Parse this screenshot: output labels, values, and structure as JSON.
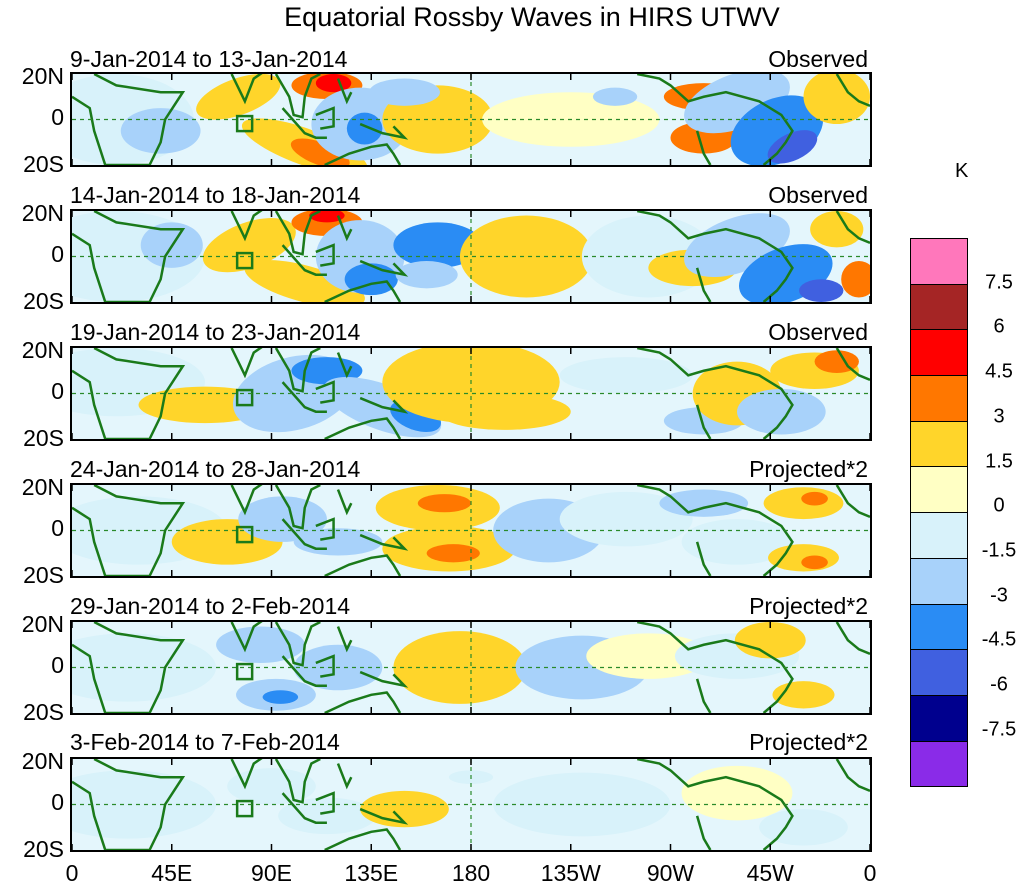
{
  "title": "Equatorial Rossby Waves in HIRS UTWV",
  "unit_label": "K",
  "latitude_labels": [
    "20N",
    "0",
    "20S"
  ],
  "longitude_labels": [
    "0",
    "45E",
    "90E",
    "135E",
    "180",
    "135W",
    "90W",
    "45W",
    "0"
  ],
  "panels": [
    {
      "date_range": "9-Jan-2014 to 13-Jan-2014",
      "kind": "Observed"
    },
    {
      "date_range": "14-Jan-2014 to 18-Jan-2014",
      "kind": "Observed"
    },
    {
      "date_range": "19-Jan-2014 to 23-Jan-2014",
      "kind": "Observed"
    },
    {
      "date_range": "24-Jan-2014 to 28-Jan-2014",
      "kind": "Projected*2"
    },
    {
      "date_range": "29-Jan-2014 to 2-Feb-2014",
      "kind": "Projected*2"
    },
    {
      "date_range": "3-Feb-2014 to 7-Feb-2014",
      "kind": "Projected*2"
    }
  ],
  "colorbar": {
    "levels": [
      "7.5",
      "6",
      "4.5",
      "3",
      "1.5",
      "0",
      "-1.5",
      "-3",
      "-4.5",
      "-6",
      "-7.5"
    ],
    "colors": [
      "#ff77bb",
      "#a52525",
      "#ff0000",
      "#ff7700",
      "#ffd52a",
      "#ffffc4",
      "#d8f2fa",
      "#a8d2fa",
      "#2a8cf4",
      "#4060e0",
      "#00008e",
      "#8a2be8"
    ]
  }
}
